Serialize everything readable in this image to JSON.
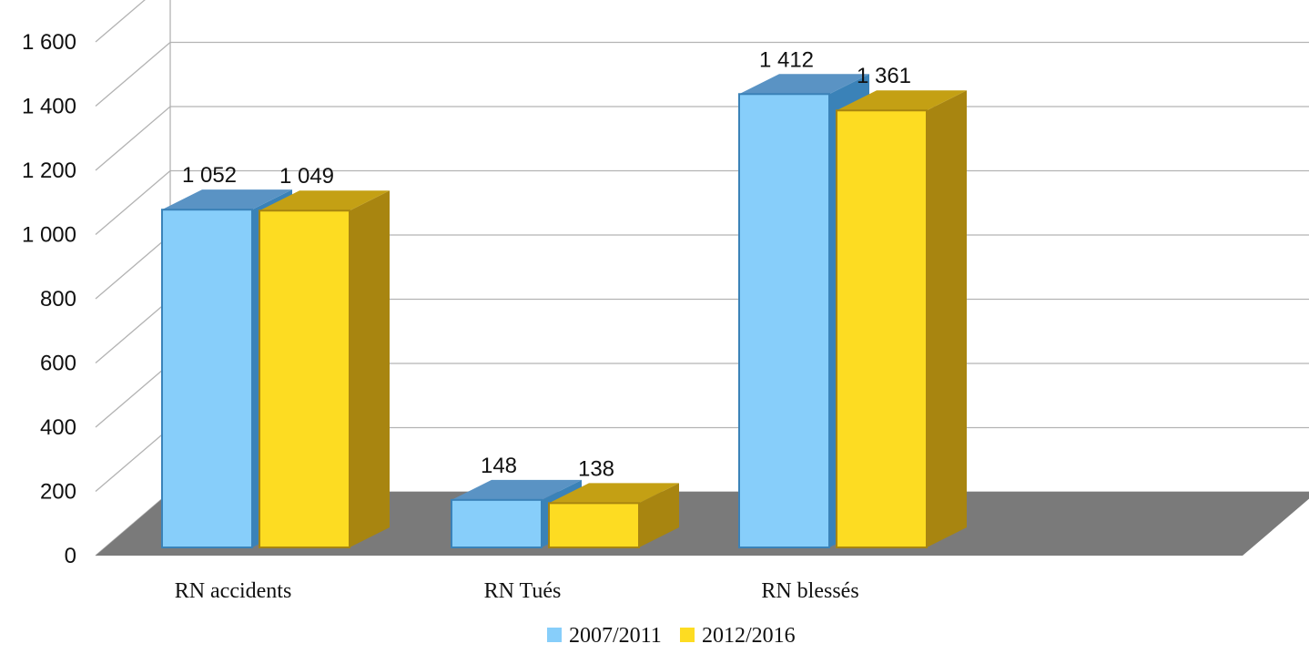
{
  "chart_data": {
    "type": "bar",
    "categories": [
      "RN accidents",
      "RN Tués",
      "RN blessés"
    ],
    "series": [
      {
        "name": "2007/2011",
        "values": [
          1052,
          148,
          1412
        ],
        "labels": [
          "1 052",
          "148",
          "1 412"
        ],
        "color": "#87cefa",
        "side_color": "#3a82b8",
        "top_color": "#5a93c4"
      },
      {
        "name": "2012/2016",
        "values": [
          1049,
          138,
          1361
        ],
        "labels": [
          "1 049",
          "138",
          "1 361"
        ],
        "color": "#fddc22",
        "side_color": "#a88510",
        "top_color": "#c4a014"
      }
    ],
    "ylim": [
      0,
      1600
    ],
    "yticks": [
      0,
      200,
      400,
      600,
      800,
      1000,
      1200,
      1400,
      1600
    ],
    "ytick_labels": [
      "0",
      "200",
      "400",
      "600",
      "800",
      "1 000",
      "1 200",
      "1 400",
      "1 600"
    ],
    "title": "",
    "xlabel": "",
    "ylabel": "",
    "grid": true,
    "style": "3d",
    "legend_position": "bottom",
    "floor_color": "#7a7a7a",
    "grid_color": "#b3b3b3"
  }
}
